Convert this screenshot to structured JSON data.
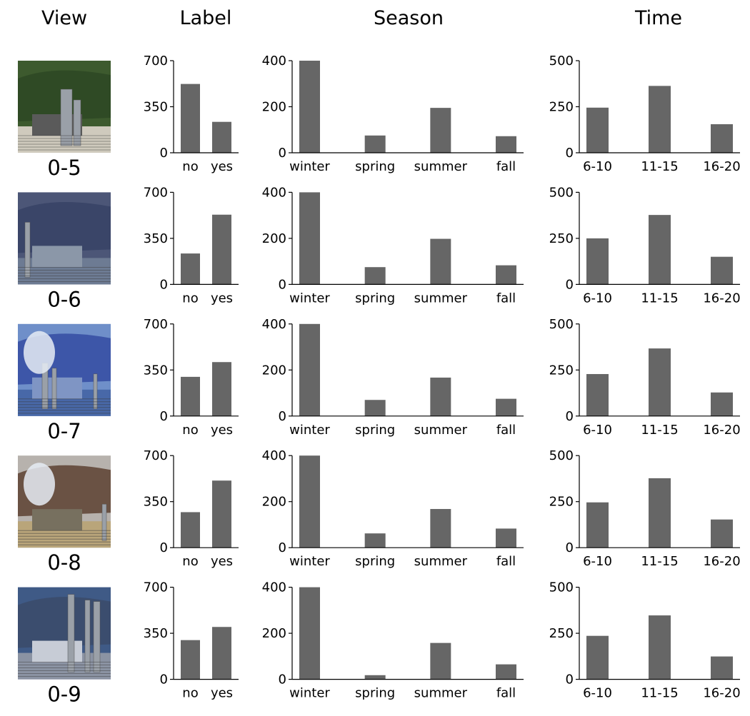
{
  "column_headers": [
    "View",
    "Label",
    "Season",
    "Time"
  ],
  "colors": {
    "bar": "#666666",
    "axis": "#000000"
  },
  "chart_data": [
    {
      "view_id": "0-5",
      "thumbnail": "industrial-plant-photo",
      "charts": [
        {
          "type": "bar",
          "title": "Label",
          "categories": [
            "no",
            "yes"
          ],
          "values": [
            523,
            235
          ],
          "yticks": [
            0,
            350,
            700
          ],
          "ylim": [
            0,
            700
          ]
        },
        {
          "type": "bar",
          "title": "Season",
          "categories": [
            "winter",
            "spring",
            "summer",
            "fall"
          ],
          "values": [
            400,
            75,
            195,
            72
          ],
          "yticks": [
            0,
            200,
            400
          ],
          "ylim": [
            0,
            400
          ]
        },
        {
          "type": "bar",
          "title": "Time",
          "categories": [
            "6-10",
            "11-15",
            "16-20"
          ],
          "values": [
            245,
            363,
            155
          ],
          "yticks": [
            0,
            250,
            500
          ],
          "ylim": [
            0,
            500
          ]
        }
      ]
    },
    {
      "view_id": "0-6",
      "thumbnail": "industrial-plant-photo",
      "charts": [
        {
          "type": "bar",
          "title": "Label",
          "categories": [
            "no",
            "yes"
          ],
          "values": [
            235,
            530
          ],
          "yticks": [
            0,
            350,
            700
          ],
          "ylim": [
            0,
            700
          ]
        },
        {
          "type": "bar",
          "title": "Season",
          "categories": [
            "winter",
            "spring",
            "summer",
            "fall"
          ],
          "values": [
            400,
            75,
            198,
            83
          ],
          "yticks": [
            0,
            200,
            400
          ],
          "ylim": [
            0,
            400
          ]
        },
        {
          "type": "bar",
          "title": "Time",
          "categories": [
            "6-10",
            "11-15",
            "16-20"
          ],
          "values": [
            250,
            377,
            150
          ],
          "yticks": [
            0,
            250,
            500
          ],
          "ylim": [
            0,
            500
          ]
        }
      ]
    },
    {
      "view_id": "0-7",
      "thumbnail": "industrial-plant-photo",
      "charts": [
        {
          "type": "bar",
          "title": "Label",
          "categories": [
            "no",
            "yes"
          ],
          "values": [
            298,
            410
          ],
          "yticks": [
            0,
            350,
            700
          ],
          "ylim": [
            0,
            700
          ]
        },
        {
          "type": "bar",
          "title": "Season",
          "categories": [
            "winter",
            "spring",
            "summer",
            "fall"
          ],
          "values": [
            400,
            70,
            167,
            75
          ],
          "yticks": [
            0,
            200,
            400
          ],
          "ylim": [
            0,
            400
          ]
        },
        {
          "type": "bar",
          "title": "Time",
          "categories": [
            "6-10",
            "11-15",
            "16-20"
          ],
          "values": [
            228,
            367,
            128
          ],
          "yticks": [
            0,
            250,
            500
          ],
          "ylim": [
            0,
            500
          ]
        }
      ]
    },
    {
      "view_id": "0-8",
      "thumbnail": "industrial-plant-photo",
      "charts": [
        {
          "type": "bar",
          "title": "Label",
          "categories": [
            "no",
            "yes"
          ],
          "values": [
            270,
            510
          ],
          "yticks": [
            0,
            350,
            700
          ],
          "ylim": [
            0,
            700
          ]
        },
        {
          "type": "bar",
          "title": "Season",
          "categories": [
            "winter",
            "spring",
            "summer",
            "fall"
          ],
          "values": [
            400,
            62,
            168,
            83
          ],
          "yticks": [
            0,
            200,
            400
          ],
          "ylim": [
            0,
            400
          ]
        },
        {
          "type": "bar",
          "title": "Time",
          "categories": [
            "6-10",
            "11-15",
            "16-20"
          ],
          "values": [
            246,
            377,
            153
          ],
          "yticks": [
            0,
            250,
            500
          ],
          "ylim": [
            0,
            500
          ]
        }
      ]
    },
    {
      "view_id": "0-9",
      "thumbnail": "industrial-plant-photo",
      "charts": [
        {
          "type": "bar",
          "title": "Label",
          "categories": [
            "no",
            "yes"
          ],
          "values": [
            298,
            398
          ],
          "yticks": [
            0,
            350,
            700
          ],
          "ylim": [
            0,
            700
          ]
        },
        {
          "type": "bar",
          "title": "Season",
          "categories": [
            "winter",
            "spring",
            "summer",
            "fall"
          ],
          "values": [
            400,
            18,
            158,
            65
          ],
          "yticks": [
            0,
            200,
            400
          ],
          "ylim": [
            0,
            400
          ]
        },
        {
          "type": "bar",
          "title": "Time",
          "categories": [
            "6-10",
            "11-15",
            "16-20"
          ],
          "values": [
            236,
            347,
            124
          ],
          "yticks": [
            0,
            250,
            500
          ],
          "ylim": [
            0,
            500
          ]
        }
      ]
    }
  ]
}
